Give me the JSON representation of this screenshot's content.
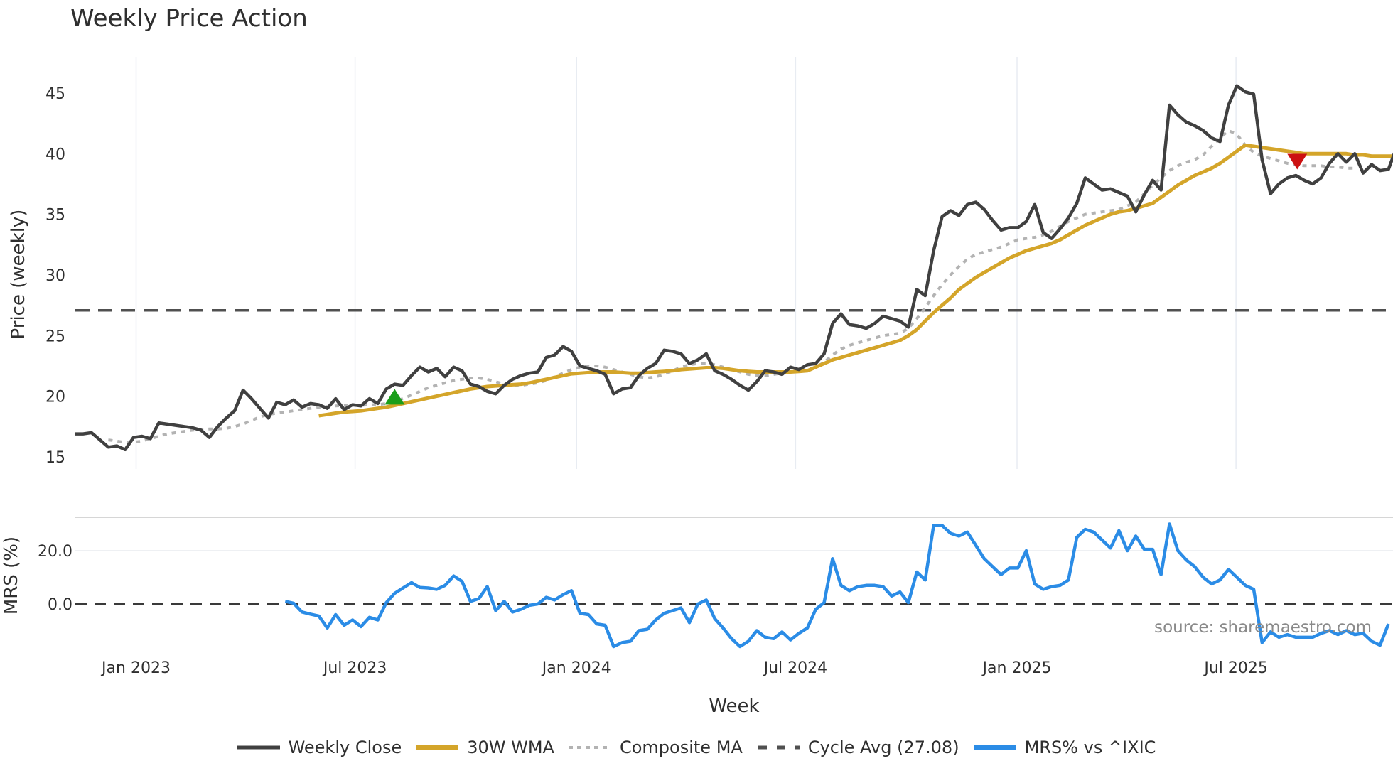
{
  "title": "Weekly Price Action",
  "source": "source: sharemaestro.com",
  "colors": {
    "close": "#404040",
    "wma": "#d4a52a",
    "composite": "#b3b3b3",
    "cycle": "#505050",
    "mrs": "#2b8ce6",
    "buy": "#1a9e1a",
    "sell": "#cc1111",
    "grid": "#e8ecf2"
  },
  "legend": [
    {
      "key": "close",
      "label": "Weekly Close",
      "style": "solid"
    },
    {
      "key": "wma",
      "label": "30W WMA",
      "style": "solid"
    },
    {
      "key": "composite",
      "label": "Composite MA",
      "style": "dot"
    },
    {
      "key": "cycle",
      "label": "Cycle Avg (27.08)",
      "style": "dash"
    },
    {
      "key": "mrs",
      "label": "MRS% vs ^IXIC",
      "style": "solid"
    }
  ],
  "chart_data": [
    {
      "type": "line",
      "title": "Weekly Price Action",
      "xlabel": "Week",
      "ylabel": "Price (weekly)",
      "ylim": [
        14.2,
        47.5
      ],
      "yticks": [
        15,
        20,
        25,
        30,
        35,
        40,
        45
      ],
      "x_tick_labels": [
        "Jan 2023",
        "Jul 2023",
        "Jan 2024",
        "Jul 2024",
        "Jan 2025",
        "Jul 2025"
      ],
      "x_tick_week_index": [
        7.3,
        33.3,
        59.6,
        85.6,
        111.9,
        137.9
      ],
      "grid": "vertical only",
      "legend_position": "bottom",
      "reference_line": {
        "name": "Cycle Avg (27.08)",
        "value": 27.08
      },
      "signals": [
        {
          "type": "buy",
          "week_index": 38,
          "value": 19.9,
          "marker": "triangle-up"
        },
        {
          "type": "sell",
          "week_index": 145,
          "value": 39.4,
          "marker": "triangle-down"
        }
      ],
      "series": [
        {
          "name": "Weekly Close",
          "start_index": 0,
          "values": [
            16.9,
            16.9,
            17.0,
            16.4,
            15.8,
            15.9,
            15.6,
            16.6,
            16.7,
            16.5,
            17.8,
            17.7,
            17.6,
            17.5,
            17.4,
            17.2,
            16.6,
            17.5,
            18.2,
            18.8,
            20.5,
            19.8,
            19.0,
            18.2,
            19.5,
            19.3,
            19.7,
            19.1,
            19.4,
            19.3,
            19.0,
            19.8,
            18.9,
            19.3,
            19.2,
            19.8,
            19.4,
            20.6,
            21.0,
            20.9,
            21.7,
            22.4,
            22.0,
            22.3,
            21.6,
            22.4,
            22.1,
            21.0,
            20.8,
            20.4,
            20.2,
            20.9,
            21.4,
            21.7,
            21.9,
            22.0,
            23.2,
            23.4,
            24.1,
            23.7,
            22.5,
            22.3,
            22.1,
            21.8,
            20.2,
            20.6,
            20.7,
            21.7,
            22.3,
            22.7,
            23.8,
            23.7,
            23.5,
            22.7,
            23.0,
            23.5,
            22.1,
            21.8,
            21.4,
            20.9,
            20.5,
            21.2,
            22.1,
            22.0,
            21.8,
            22.4,
            22.2,
            22.6,
            22.7,
            23.5,
            26.0,
            26.8,
            25.9,
            25.8,
            25.6,
            26.0,
            26.6,
            26.4,
            26.2,
            25.7,
            28.8,
            28.3,
            32.0,
            34.8,
            35.3,
            34.9,
            35.8,
            36.0,
            35.4,
            34.5,
            33.7,
            33.9,
            33.9,
            34.4,
            35.8,
            33.5,
            33.0,
            33.8,
            34.7,
            35.9,
            38.0,
            37.5,
            37.0,
            37.1,
            36.8,
            36.5,
            35.2,
            36.6,
            37.8,
            37.0,
            44.0,
            43.2,
            42.6,
            42.3,
            41.9,
            41.3,
            41.0,
            44.0,
            45.6,
            45.1,
            44.9,
            39.5,
            36.7,
            37.5,
            38.0,
            38.2,
            37.8,
            37.5,
            38.0,
            39.2,
            40.0,
            39.3,
            40.0,
            38.4,
            39.1,
            38.6,
            38.7,
            40.6
          ]
        },
        {
          "name": "30W WMA",
          "start_index": 29,
          "values": [
            18.4,
            18.5,
            18.6,
            18.7,
            18.75,
            18.8,
            18.9,
            19.0,
            19.1,
            19.25,
            19.4,
            19.55,
            19.7,
            19.85,
            20.0,
            20.15,
            20.3,
            20.45,
            20.6,
            20.7,
            20.8,
            20.85,
            20.9,
            20.95,
            21.0,
            21.1,
            21.25,
            21.4,
            21.55,
            21.7,
            21.85,
            21.9,
            21.95,
            22.0,
            22.0,
            22.0,
            21.95,
            21.9,
            21.9,
            21.95,
            22.0,
            22.05,
            22.1,
            22.2,
            22.25,
            22.3,
            22.35,
            22.35,
            22.3,
            22.2,
            22.1,
            22.05,
            22.0,
            22.0,
            22.0,
            22.0,
            22.0,
            22.05,
            22.1,
            22.4,
            22.7,
            23.0,
            23.2,
            23.4,
            23.6,
            23.8,
            24.0,
            24.2,
            24.4,
            24.6,
            25.0,
            25.5,
            26.2,
            26.9,
            27.5,
            28.1,
            28.8,
            29.3,
            29.8,
            30.2,
            30.6,
            31.0,
            31.4,
            31.7,
            32.0,
            32.2,
            32.4,
            32.6,
            32.9,
            33.3,
            33.7,
            34.1,
            34.4,
            34.7,
            35.0,
            35.2,
            35.3,
            35.5,
            35.7,
            35.9,
            36.4,
            36.9,
            37.4,
            37.8,
            38.2,
            38.5,
            38.8,
            39.2,
            39.7,
            40.2,
            40.7,
            40.6,
            40.5,
            40.4,
            40.3,
            40.2,
            40.1,
            40.0,
            40.0,
            40.0,
            40.0,
            40.0,
            40.0,
            39.9,
            39.9,
            39.8,
            39.8,
            39.8,
            39.8
          ]
        },
        {
          "name": "Composite MA",
          "start_index": 4,
          "values": [
            16.4,
            16.3,
            16.2,
            16.2,
            16.3,
            16.5,
            16.7,
            16.9,
            17.0,
            17.1,
            17.2,
            17.25,
            17.3,
            17.3,
            17.35,
            17.5,
            17.7,
            18.0,
            18.3,
            18.5,
            18.6,
            18.7,
            18.8,
            18.9,
            19.0,
            19.1,
            19.15,
            19.2,
            19.25,
            19.25,
            19.25,
            19.3,
            19.3,
            19.4,
            19.6,
            19.8,
            20.1,
            20.4,
            20.7,
            20.9,
            21.1,
            21.3,
            21.4,
            21.5,
            21.5,
            21.4,
            21.2,
            21.0,
            20.9,
            20.9,
            21.0,
            21.1,
            21.3,
            21.6,
            21.9,
            22.2,
            22.4,
            22.5,
            22.5,
            22.4,
            22.2,
            22.0,
            21.8,
            21.6,
            21.5,
            21.6,
            21.8,
            22.1,
            22.4,
            22.6,
            22.7,
            22.7,
            22.6,
            22.4,
            22.2,
            22.0,
            21.8,
            21.7,
            21.7,
            21.8,
            21.9,
            22.0,
            22.1,
            22.2,
            22.4,
            22.8,
            23.4,
            23.9,
            24.2,
            24.4,
            24.6,
            24.8,
            25.0,
            25.1,
            25.2,
            25.6,
            26.4,
            27.3,
            28.3,
            29.2,
            30.0,
            30.7,
            31.3,
            31.7,
            31.9,
            32.1,
            32.3,
            32.6,
            32.9,
            33.0,
            33.1,
            33.3,
            33.6,
            34.0,
            34.4,
            34.7,
            35.0,
            35.1,
            35.2,
            35.3,
            35.4,
            35.7,
            36.0,
            36.7,
            37.4,
            38.0,
            38.6,
            39.0,
            39.3,
            39.5,
            39.9,
            40.6,
            41.3,
            41.9,
            41.6,
            40.7,
            40.1,
            39.8,
            39.6,
            39.4,
            39.2,
            39.1,
            39.0,
            39.0,
            39.0,
            38.9,
            38.9,
            38.8,
            38.8
          ]
        },
        {
          "name": "Cycle Avg (27.08)",
          "constant": 27.08
        }
      ]
    },
    {
      "type": "line",
      "ylabel": "MRS (%)",
      "ylim": [
        -18,
        32.5
      ],
      "yticks": [
        0.0,
        20.0
      ],
      "ytick_labels": [
        "0.0",
        "20.0"
      ],
      "zero_line": "dashed",
      "series": [
        {
          "name": "MRS% vs ^IXIC",
          "start_index": 25,
          "values": [
            1.0,
            0.3,
            -3.0,
            -3.8,
            -4.5,
            -9.0,
            -4.0,
            -8.0,
            -6.0,
            -8.5,
            -5.0,
            -6.0,
            0.5,
            4.0,
            6.0,
            8.0,
            6.2,
            6.0,
            5.5,
            7.0,
            10.5,
            8.5,
            1.0,
            2.0,
            6.5,
            -2.5,
            1.0,
            -3.0,
            -2.0,
            -0.5,
            0.0,
            2.5,
            1.5,
            3.5,
            5.0,
            -3.5,
            -4.0,
            -7.5,
            -8.0,
            -16.0,
            -14.5,
            -14.0,
            -10.0,
            -9.5,
            -6.0,
            -3.5,
            -2.5,
            -1.5,
            -7.0,
            0.0,
            1.5,
            -5.5,
            -9.0,
            -13.0,
            -16.0,
            -14.0,
            -10.0,
            -12.5,
            -13.0,
            -10.5,
            -13.5,
            -11.0,
            -9.0,
            -2.0,
            0.5,
            17.0,
            7.0,
            5.0,
            6.5,
            7.0,
            7.0,
            6.5,
            3.0,
            4.5,
            0.5,
            12.0,
            9.0,
            29.5,
            29.5,
            26.5,
            25.5,
            27.0,
            22.0,
            17.0,
            14.0,
            11.0,
            13.5,
            13.5,
            20.0,
            7.5,
            5.5,
            6.5,
            7.0,
            9.0,
            25.0,
            28.0,
            27.0,
            24.0,
            21.0,
            27.5,
            20.0,
            25.5,
            20.5,
            20.5,
            11.0,
            30.0,
            20.0,
            16.5,
            14.0,
            10.0,
            7.5,
            9.0,
            13.0,
            10.0,
            7.0,
            5.5,
            -14.5,
            -10.5,
            -12.5,
            -11.5,
            -12.5,
            -12.5,
            -12.5,
            -11.0,
            -10.0,
            -11.5,
            -10.0,
            -11.5,
            -11.0,
            -14.0,
            -15.5,
            -7.5
          ]
        }
      ]
    }
  ],
  "axes": {
    "price_ylabel": "Price (weekly)",
    "mrs_ylabel": "MRS (%)",
    "xlabel": "Week",
    "price_yticks": [
      "15",
      "20",
      "25",
      "30",
      "35",
      "40",
      "45"
    ],
    "mrs_yticks": [
      "0.0",
      "20.0"
    ],
    "x_ticks": [
      "Jan 2023",
      "Jul 2023",
      "Jan 2024",
      "Jul 2024",
      "Jan 2025",
      "Jul 2025"
    ]
  }
}
